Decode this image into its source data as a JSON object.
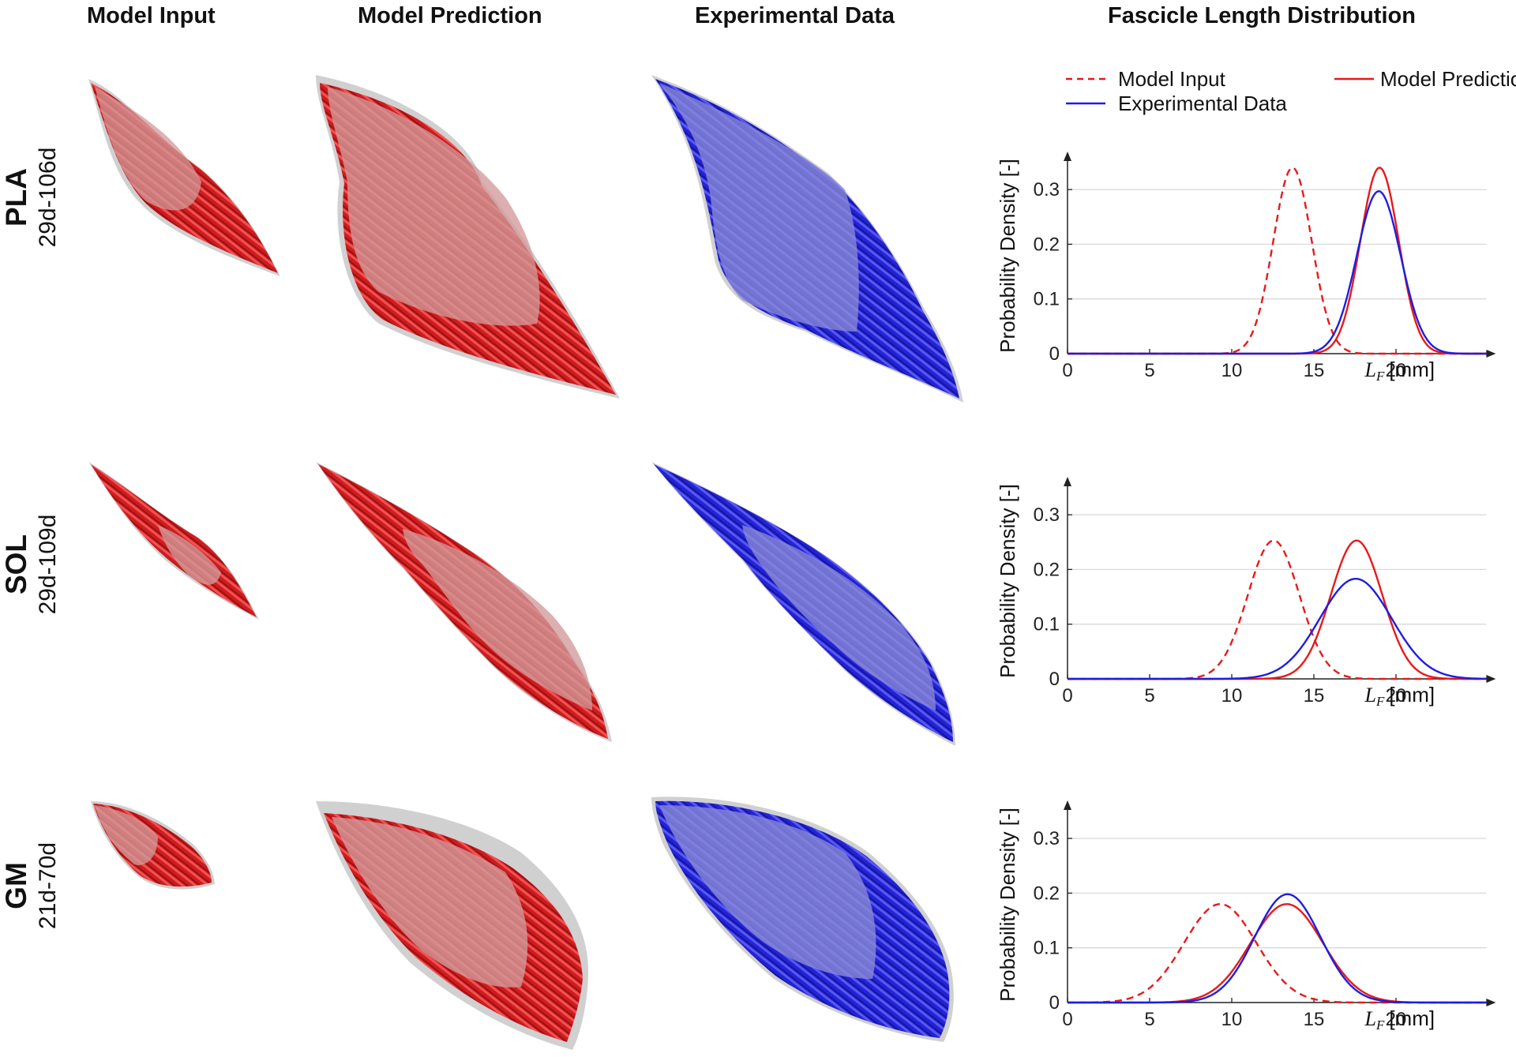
{
  "columns": {
    "model_input": "Model Input",
    "model_prediction": "Model Prediction",
    "experimental_data": "Experimental Data",
    "distribution": "Fascicle Length Distribution"
  },
  "rows": [
    {
      "muscle": "PLA",
      "age_range": "29d-106d"
    },
    {
      "muscle": "SOL",
      "age_range": "29d-109d"
    },
    {
      "muscle": "GM",
      "age_range": "21d-70d"
    }
  ],
  "legend": {
    "model_input": "Model Input",
    "model_prediction": "Model Prediction",
    "experimental_data": "Experimental Data"
  },
  "colors": {
    "model": "#e8191b",
    "experimental": "#1e1ee0",
    "hull": "#c4c4c4",
    "grid": "#d9d9d9"
  },
  "chart_data": [
    {
      "type": "line",
      "panel": "PLA",
      "ylabel": "Probability Density [-]",
      "xlabel_symbol": "L",
      "xlabel_subscript": "F",
      "xlabel_unit": "[mm]",
      "xlim": [
        0,
        25.5
      ],
      "ylim": [
        0,
        0.36
      ],
      "xticks": [
        0,
        5,
        10,
        15,
        20
      ],
      "yticks": [
        0,
        0.1,
        0.2,
        0.3
      ],
      "ytick_labels": [
        "0",
        "0.1",
        "0.2",
        "0.3"
      ],
      "grid": "horizontal",
      "series": [
        {
          "name": "Model Input",
          "style": "dashed",
          "color": "#e8191b",
          "mean": 13.7,
          "sd": 1.17,
          "peak": 0.34
        },
        {
          "name": "Model Prediction",
          "style": "solid",
          "color": "#e8191b",
          "mean": 19.0,
          "sd": 1.17,
          "peak": 0.34
        },
        {
          "name": "Experimental Data",
          "style": "solid",
          "color": "#1e1ee0",
          "mean": 18.95,
          "sd": 1.33,
          "peak": 0.297
        }
      ]
    },
    {
      "type": "line",
      "panel": "SOL",
      "ylabel": "Probability Density [-]",
      "xlabel_symbol": "L",
      "xlabel_subscript": "F",
      "xlabel_unit": "[mm]",
      "xlim": [
        0,
        25.5
      ],
      "ylim": [
        0,
        0.36
      ],
      "xticks": [
        0,
        5,
        10,
        15,
        20
      ],
      "yticks": [
        0,
        0.1,
        0.2,
        0.3
      ],
      "ytick_labels": [
        "0",
        "0.1",
        "0.2",
        "0.3"
      ],
      "grid": "horizontal",
      "series": [
        {
          "name": "Model Input",
          "style": "dashed",
          "color": "#e8191b",
          "mean": 12.55,
          "sd": 1.57,
          "peak": 0.253
        },
        {
          "name": "Model Prediction",
          "style": "solid",
          "color": "#e8191b",
          "mean": 17.6,
          "sd": 1.57,
          "peak": 0.253
        },
        {
          "name": "Experimental Data",
          "style": "solid",
          "color": "#1e1ee0",
          "mean": 17.55,
          "sd": 2.18,
          "peak": 0.183
        }
      ]
    },
    {
      "type": "line",
      "panel": "GM",
      "ylabel": "Probability Density [-]",
      "xlabel_symbol": "L",
      "xlabel_subscript": "F",
      "xlabel_unit": "[mm]",
      "xlim": [
        0,
        25.5
      ],
      "ylim": [
        0,
        0.36
      ],
      "xticks": [
        0,
        5,
        10,
        15,
        20
      ],
      "yticks": [
        0,
        0.1,
        0.2,
        0.3
      ],
      "ytick_labels": [
        "0",
        "0.1",
        "0.2",
        "0.3"
      ],
      "grid": "horizontal",
      "series": [
        {
          "name": "Model Input",
          "style": "dashed",
          "color": "#e8191b",
          "mean": 9.3,
          "sd": 2.2,
          "peak": 0.18
        },
        {
          "name": "Model Prediction",
          "style": "solid",
          "color": "#e8191b",
          "mean": 13.35,
          "sd": 2.2,
          "peak": 0.18
        },
        {
          "name": "Experimental Data",
          "style": "solid",
          "color": "#1e1ee0",
          "mean": 13.4,
          "sd": 2.0,
          "peak": 0.198
        }
      ]
    }
  ]
}
